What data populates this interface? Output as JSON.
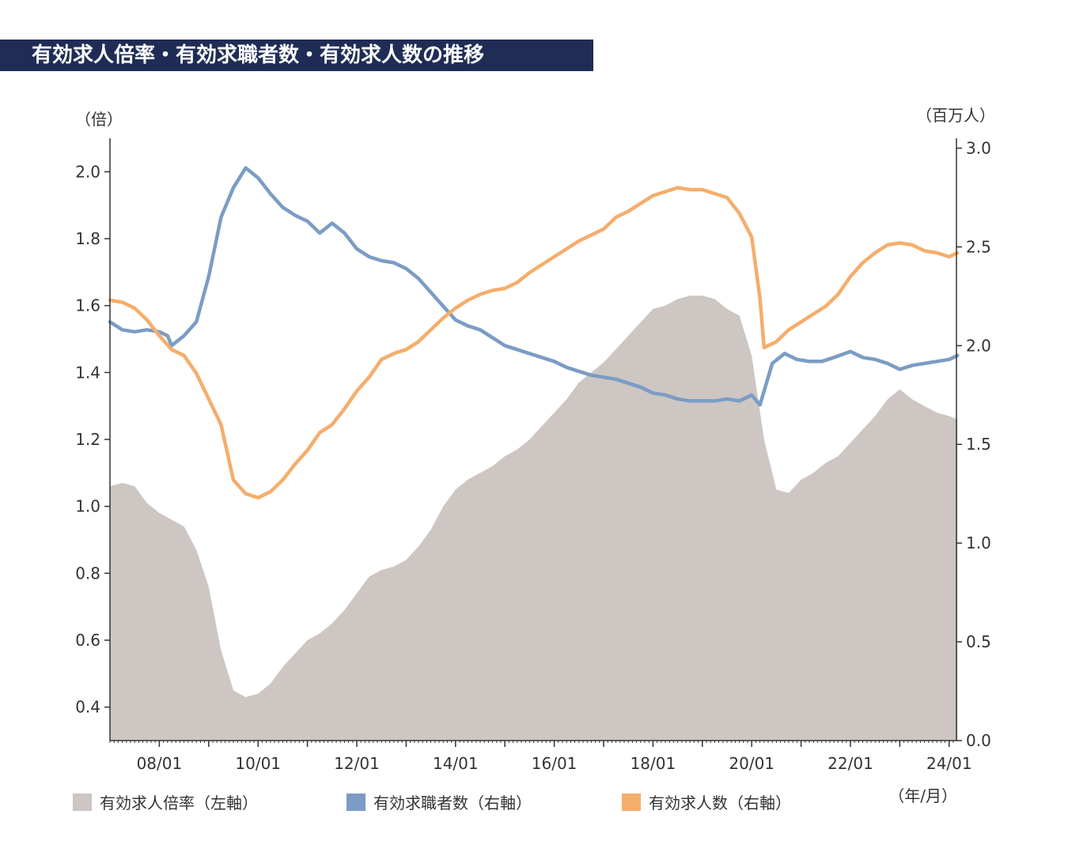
{
  "title": "有効求人倍率・有効求職者数・有効求人数の推移",
  "chart_data": {
    "type": "area",
    "left_axis": {
      "unit": "（倍）",
      "ylim": [
        0.3,
        2.1
      ],
      "ticks": [
        "0.4",
        "0.6",
        "0.8",
        "1.0",
        "1.2",
        "1.4",
        "1.6",
        "1.8",
        "2.0"
      ]
    },
    "right_axis": {
      "unit": "（百万人）",
      "ylim": [
        0.0,
        3.05
      ],
      "ticks": [
        "0.0",
        "0.5",
        "1.0",
        "1.5",
        "2.0",
        "2.5",
        "3.0"
      ]
    },
    "x_axis": {
      "unit": "（年/月）",
      "range": [
        "2007-01",
        "2024-03"
      ],
      "ticks": [
        {
          "label": "08/01",
          "x": "2008-01"
        },
        {
          "label": "10/01",
          "x": "2010-01"
        },
        {
          "label": "12/01",
          "x": "2012-01"
        },
        {
          "label": "14/01",
          "x": "2014-01"
        },
        {
          "label": "16/01",
          "x": "2016-01"
        },
        {
          "label": "18/01",
          "x": "2018-01"
        },
        {
          "label": "20/01",
          "x": "2020-01"
        },
        {
          "label": "22/01",
          "x": "2022-01"
        },
        {
          "label": "24/01",
          "x": "2024-01"
        }
      ]
    },
    "legend": [
      "有効求人倍率（左軸）",
      "有効求職者数（右軸）",
      "有効求人数（右軸）"
    ],
    "legend_position": "bottom",
    "grid": false,
    "series": [
      {
        "name": "有効求人倍率（左軸）",
        "axis": "left",
        "type": "area",
        "color": "#cdc6c3",
        "points": [
          [
            "2007-01",
            1.06
          ],
          [
            "2007-04",
            1.07
          ],
          [
            "2007-07",
            1.06
          ],
          [
            "2007-10",
            1.01
          ],
          [
            "2008-01",
            0.98
          ],
          [
            "2008-04",
            0.96
          ],
          [
            "2008-07",
            0.94
          ],
          [
            "2008-10",
            0.87
          ],
          [
            "2009-01",
            0.76
          ],
          [
            "2009-04",
            0.57
          ],
          [
            "2009-07",
            0.45
          ],
          [
            "2009-10",
            0.43
          ],
          [
            "2010-01",
            0.44
          ],
          [
            "2010-04",
            0.47
          ],
          [
            "2010-07",
            0.52
          ],
          [
            "2010-10",
            0.56
          ],
          [
            "2011-01",
            0.6
          ],
          [
            "2011-04",
            0.62
          ],
          [
            "2011-07",
            0.65
          ],
          [
            "2011-10",
            0.69
          ],
          [
            "2012-01",
            0.74
          ],
          [
            "2012-04",
            0.79
          ],
          [
            "2012-07",
            0.81
          ],
          [
            "2012-10",
            0.82
          ],
          [
            "2013-01",
            0.84
          ],
          [
            "2013-04",
            0.88
          ],
          [
            "2013-07",
            0.93
          ],
          [
            "2013-10",
            1.0
          ],
          [
            "2014-01",
            1.05
          ],
          [
            "2014-04",
            1.08
          ],
          [
            "2014-07",
            1.1
          ],
          [
            "2014-10",
            1.12
          ],
          [
            "2015-01",
            1.15
          ],
          [
            "2015-04",
            1.17
          ],
          [
            "2015-07",
            1.2
          ],
          [
            "2015-10",
            1.24
          ],
          [
            "2016-01",
            1.28
          ],
          [
            "2016-04",
            1.32
          ],
          [
            "2016-07",
            1.37
          ],
          [
            "2016-10",
            1.4
          ],
          [
            "2017-01",
            1.43
          ],
          [
            "2017-04",
            1.47
          ],
          [
            "2017-07",
            1.51
          ],
          [
            "2017-10",
            1.55
          ],
          [
            "2018-01",
            1.59
          ],
          [
            "2018-04",
            1.6
          ],
          [
            "2018-07",
            1.62
          ],
          [
            "2018-10",
            1.63
          ],
          [
            "2019-01",
            1.63
          ],
          [
            "2019-04",
            1.62
          ],
          [
            "2019-07",
            1.59
          ],
          [
            "2019-10",
            1.57
          ],
          [
            "2020-01",
            1.45
          ],
          [
            "2020-04",
            1.2
          ],
          [
            "2020-07",
            1.05
          ],
          [
            "2020-10",
            1.04
          ],
          [
            "2021-01",
            1.08
          ],
          [
            "2021-04",
            1.1
          ],
          [
            "2021-07",
            1.13
          ],
          [
            "2021-10",
            1.15
          ],
          [
            "2022-01",
            1.19
          ],
          [
            "2022-04",
            1.23
          ],
          [
            "2022-07",
            1.27
          ],
          [
            "2022-10",
            1.32
          ],
          [
            "2023-01",
            1.35
          ],
          [
            "2023-04",
            1.32
          ],
          [
            "2023-07",
            1.3
          ],
          [
            "2023-10",
            1.28
          ],
          [
            "2024-01",
            1.27
          ],
          [
            "2024-03",
            1.26
          ]
        ]
      },
      {
        "name": "有効求職者数（右軸）",
        "axis": "right",
        "type": "line",
        "color": "#7b9cc4",
        "points": [
          [
            "2007-01",
            2.12
          ],
          [
            "2007-04",
            2.08
          ],
          [
            "2007-07",
            2.07
          ],
          [
            "2007-10",
            2.08
          ],
          [
            "2008-01",
            2.07
          ],
          [
            "2008-03",
            2.05
          ],
          [
            "2008-04",
            2.0
          ],
          [
            "2008-07",
            2.05
          ],
          [
            "2008-10",
            2.12
          ],
          [
            "2009-01",
            2.35
          ],
          [
            "2009-04",
            2.65
          ],
          [
            "2009-07",
            2.8
          ],
          [
            "2009-10",
            2.9
          ],
          [
            "2010-01",
            2.85
          ],
          [
            "2010-04",
            2.77
          ],
          [
            "2010-07",
            2.7
          ],
          [
            "2010-10",
            2.66
          ],
          [
            "2011-01",
            2.63
          ],
          [
            "2011-04",
            2.57
          ],
          [
            "2011-07",
            2.62
          ],
          [
            "2011-10",
            2.57
          ],
          [
            "2012-01",
            2.49
          ],
          [
            "2012-04",
            2.45
          ],
          [
            "2012-07",
            2.43
          ],
          [
            "2012-10",
            2.42
          ],
          [
            "2013-01",
            2.39
          ],
          [
            "2013-04",
            2.34
          ],
          [
            "2013-07",
            2.27
          ],
          [
            "2013-10",
            2.2
          ],
          [
            "2014-01",
            2.13
          ],
          [
            "2014-04",
            2.1
          ],
          [
            "2014-07",
            2.08
          ],
          [
            "2014-10",
            2.04
          ],
          [
            "2015-01",
            2.0
          ],
          [
            "2015-04",
            1.98
          ],
          [
            "2015-07",
            1.96
          ],
          [
            "2015-10",
            1.94
          ],
          [
            "2016-01",
            1.92
          ],
          [
            "2016-04",
            1.89
          ],
          [
            "2016-07",
            1.87
          ],
          [
            "2016-10",
            1.85
          ],
          [
            "2017-01",
            1.84
          ],
          [
            "2017-04",
            1.83
          ],
          [
            "2017-07",
            1.81
          ],
          [
            "2017-10",
            1.79
          ],
          [
            "2018-01",
            1.76
          ],
          [
            "2018-04",
            1.75
          ],
          [
            "2018-07",
            1.73
          ],
          [
            "2018-10",
            1.72
          ],
          [
            "2019-01",
            1.72
          ],
          [
            "2019-04",
            1.72
          ],
          [
            "2019-07",
            1.73
          ],
          [
            "2019-10",
            1.72
          ],
          [
            "2020-01",
            1.75
          ],
          [
            "2020-03",
            1.7
          ],
          [
            "2020-06",
            1.91
          ],
          [
            "2020-09",
            1.96
          ],
          [
            "2020-12",
            1.93
          ],
          [
            "2021-03",
            1.92
          ],
          [
            "2021-06",
            1.92
          ],
          [
            "2021-09",
            1.94
          ],
          [
            "2022-01",
            1.97
          ],
          [
            "2022-04",
            1.94
          ],
          [
            "2022-07",
            1.93
          ],
          [
            "2022-10",
            1.91
          ],
          [
            "2023-01",
            1.88
          ],
          [
            "2023-04",
            1.9
          ],
          [
            "2023-07",
            1.91
          ],
          [
            "2023-10",
            1.92
          ],
          [
            "2024-01",
            1.93
          ],
          [
            "2024-03",
            1.95
          ]
        ]
      },
      {
        "name": "有効求人数（右軸）",
        "axis": "right",
        "type": "line",
        "color": "#f5ad6b",
        "points": [
          [
            "2007-01",
            2.23
          ],
          [
            "2007-04",
            2.22
          ],
          [
            "2007-07",
            2.19
          ],
          [
            "2007-10",
            2.13
          ],
          [
            "2008-01",
            2.05
          ],
          [
            "2008-04",
            1.98
          ],
          [
            "2008-07",
            1.95
          ],
          [
            "2008-10",
            1.86
          ],
          [
            "2009-01",
            1.73
          ],
          [
            "2009-04",
            1.6
          ],
          [
            "2009-07",
            1.32
          ],
          [
            "2009-10",
            1.25
          ],
          [
            "2010-01",
            1.23
          ],
          [
            "2010-04",
            1.26
          ],
          [
            "2010-07",
            1.32
          ],
          [
            "2010-10",
            1.4
          ],
          [
            "2011-01",
            1.47
          ],
          [
            "2011-04",
            1.56
          ],
          [
            "2011-07",
            1.6
          ],
          [
            "2011-10",
            1.68
          ],
          [
            "2012-01",
            1.77
          ],
          [
            "2012-04",
            1.84
          ],
          [
            "2012-07",
            1.93
          ],
          [
            "2012-10",
            1.96
          ],
          [
            "2013-01",
            1.98
          ],
          [
            "2013-04",
            2.02
          ],
          [
            "2013-07",
            2.08
          ],
          [
            "2013-10",
            2.14
          ],
          [
            "2014-01",
            2.19
          ],
          [
            "2014-04",
            2.23
          ],
          [
            "2014-07",
            2.26
          ],
          [
            "2014-10",
            2.28
          ],
          [
            "2015-01",
            2.29
          ],
          [
            "2015-04",
            2.32
          ],
          [
            "2015-07",
            2.37
          ],
          [
            "2015-10",
            2.41
          ],
          [
            "2016-01",
            2.45
          ],
          [
            "2016-04",
            2.49
          ],
          [
            "2016-07",
            2.53
          ],
          [
            "2016-10",
            2.56
          ],
          [
            "2017-01",
            2.59
          ],
          [
            "2017-04",
            2.65
          ],
          [
            "2017-07",
            2.68
          ],
          [
            "2017-10",
            2.72
          ],
          [
            "2018-01",
            2.76
          ],
          [
            "2018-04",
            2.78
          ],
          [
            "2018-07",
            2.8
          ],
          [
            "2018-10",
            2.79
          ],
          [
            "2019-01",
            2.79
          ],
          [
            "2019-04",
            2.77
          ],
          [
            "2019-07",
            2.75
          ],
          [
            "2019-10",
            2.67
          ],
          [
            "2020-01",
            2.55
          ],
          [
            "2020-03",
            2.24
          ],
          [
            "2020-04",
            1.99
          ],
          [
            "2020-07",
            2.02
          ],
          [
            "2020-10",
            2.08
          ],
          [
            "2021-01",
            2.12
          ],
          [
            "2021-04",
            2.16
          ],
          [
            "2021-07",
            2.2
          ],
          [
            "2021-10",
            2.26
          ],
          [
            "2022-01",
            2.35
          ],
          [
            "2022-04",
            2.42
          ],
          [
            "2022-07",
            2.47
          ],
          [
            "2022-10",
            2.51
          ],
          [
            "2023-01",
            2.52
          ],
          [
            "2023-04",
            2.51
          ],
          [
            "2023-07",
            2.48
          ],
          [
            "2023-10",
            2.47
          ],
          [
            "2024-01",
            2.45
          ],
          [
            "2024-03",
            2.47
          ]
        ]
      }
    ]
  }
}
